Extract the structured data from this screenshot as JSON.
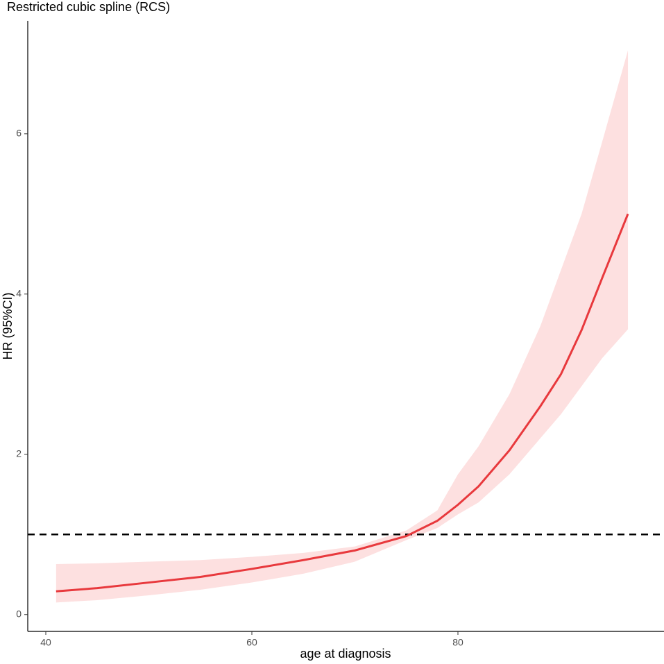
{
  "chart_data": {
    "type": "line",
    "title": "Restricted cubic spline (RCS)",
    "xlabel": "age at diagnosis",
    "ylabel": "HR (95%CI)",
    "xlim": [
      38.25,
      100
    ],
    "xticks": [
      40,
      60,
      80
    ],
    "ylim": [
      -0.21,
      7.41
    ],
    "yticks": [
      0,
      2,
      4,
      6
    ],
    "hline": 1,
    "band_color": "#fde0e0",
    "series": [
      {
        "color": "#e8393d",
        "x": [
          41,
          45,
          50,
          55,
          60,
          65,
          70,
          75,
          78,
          80,
          82,
          85,
          88,
          90,
          92,
          94,
          96.5
        ],
        "values": [
          0.29,
          0.33,
          0.4,
          0.47,
          0.57,
          0.68,
          0.8,
          0.98,
          1.17,
          1.37,
          1.6,
          2.05,
          2.6,
          3.0,
          3.55,
          4.2,
          5.0
        ],
        "lower": [
          0.15,
          0.18,
          0.24,
          0.31,
          0.4,
          0.51,
          0.66,
          0.93,
          1.08,
          1.25,
          1.4,
          1.75,
          2.2,
          2.5,
          2.85,
          3.2,
          3.56
        ],
        "upper": [
          0.63,
          0.64,
          0.66,
          0.68,
          0.72,
          0.77,
          0.85,
          1.05,
          1.3,
          1.75,
          2.1,
          2.75,
          3.6,
          4.3,
          5.0,
          5.9,
          7.04
        ]
      }
    ]
  }
}
